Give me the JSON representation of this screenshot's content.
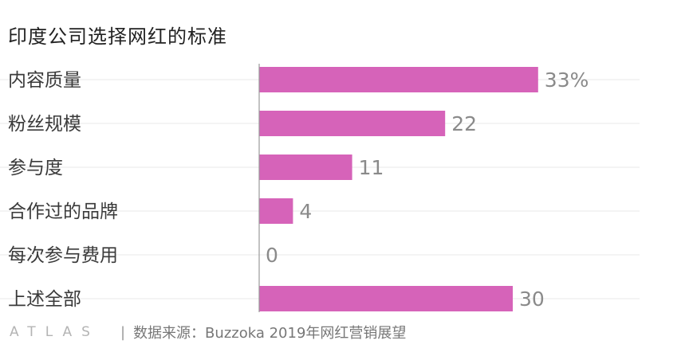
{
  "chart_data": {
    "type": "bar",
    "orientation": "horizontal",
    "title": "印度公司选择网红的标准",
    "categories": [
      "内容质量",
      "粉丝规模",
      "参与度",
      "合作过的品牌",
      "每次参与费用",
      "上述全部"
    ],
    "values": [
      33,
      22,
      11,
      4,
      0,
      30
    ],
    "value_labels": [
      "33%",
      "22",
      "11",
      "4",
      "0",
      "30"
    ],
    "unit": "%",
    "xlim": [
      0,
      45
    ],
    "bar_color": "#d663b9",
    "grid": true,
    "legend": "none"
  },
  "footer": {
    "logo": "ATLAS",
    "separator": "|",
    "source": "数据来源：Buzzoka 2019年网红营销展望"
  }
}
